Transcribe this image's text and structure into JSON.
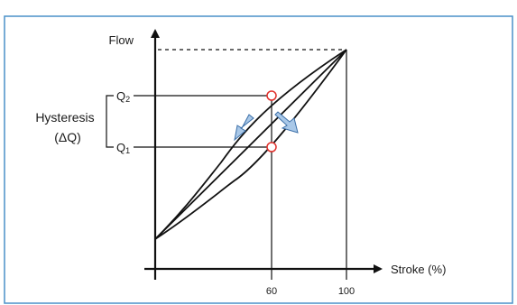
{
  "diagram": {
    "y_axis_label": "Flow",
    "x_axis_label": "Stroke (%)",
    "x_ticks": [
      "60",
      "100"
    ],
    "q_high": {
      "letter": "Q",
      "sub": "2"
    },
    "q_low": {
      "letter": "Q",
      "sub": "1"
    },
    "hysteresis_title": "Hysteresis",
    "hysteresis_symbol": "(ΔQ)",
    "colors": {
      "frame": "#4a90c8",
      "line": "#111111",
      "marker": "#e0302b",
      "arrow_fill": "#a9c8e8",
      "arrow_stroke": "#3b6fa8"
    }
  }
}
